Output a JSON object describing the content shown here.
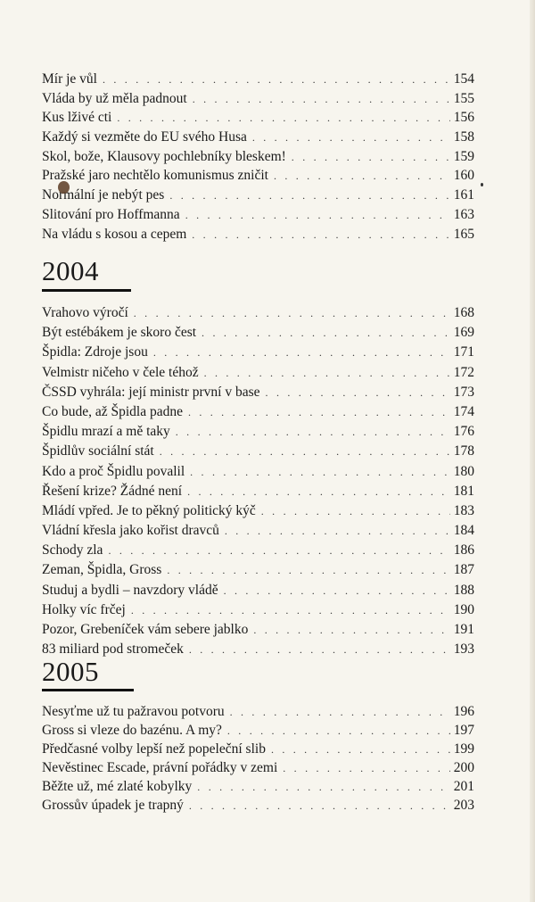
{
  "sections": [
    {
      "year": "",
      "entries": [
        {
          "title": "Mír je vůl",
          "page": "154"
        },
        {
          "title": "Vláda by už měla padnout",
          "page": "155"
        },
        {
          "title": "Kus lživé cti",
          "page": "156"
        },
        {
          "title": "Každý si vezměte do EU svého Husa",
          "page": "158"
        },
        {
          "title": "Skol, bože, Klausovy pochlebníky bleskem!",
          "page": "159"
        },
        {
          "title": "Pražské jaro nechtělo komunismus zničit",
          "page": "160"
        },
        {
          "title": "Normální je nebýt pes",
          "page": "161"
        },
        {
          "title": "Slitování pro Hoffmanna",
          "page": "163"
        },
        {
          "title": "Na vládu s kosou a cepem",
          "page": "165"
        }
      ]
    },
    {
      "year": "2004",
      "entries": [
        {
          "title": "Vrahovo výročí",
          "page": "168"
        },
        {
          "title": "Být estébákem je skoro čest",
          "page": "169"
        },
        {
          "title": "Špidla: Zdroje jsou",
          "page": "171"
        },
        {
          "title": "Velmistr ničeho v čele téhož",
          "page": "172"
        },
        {
          "title": "ČSSD vyhrála: její ministr první v base",
          "page": "173"
        },
        {
          "title": "Co bude, až Špidla padne",
          "page": "174"
        },
        {
          "title": "Špidlu mrazí a mě taky",
          "page": "176"
        },
        {
          "title": "Špidlův sociální stát",
          "page": "178"
        },
        {
          "title": "Kdo a proč Špidlu povalil",
          "page": "180"
        },
        {
          "title": "Řešení krize? Žádné není",
          "page": "181"
        },
        {
          "title": "Mládí vpřed. Je to pěkný politický kýč",
          "page": "183"
        },
        {
          "title": "Vládní křesla jako kořist dravců",
          "page": "184"
        },
        {
          "title": "Schody zla",
          "page": "186"
        },
        {
          "title": "Zeman, Špidla, Gross",
          "page": "187"
        },
        {
          "title": "Studuj a bydli – navzdory vládě",
          "page": "188"
        },
        {
          "title": "Holky víc frčej",
          "page": "190"
        },
        {
          "title": "Pozor, Grebeníček vám sebere jablko",
          "page": "191"
        },
        {
          "title": "83 miliard pod stromeček",
          "page": "193"
        }
      ]
    },
    {
      "year": "2005",
      "entries": [
        {
          "title": "Nesyťme už tu pažravou potvoru",
          "page": "196"
        },
        {
          "title": "Gross si vleze do bazénu. A my?",
          "page": "197"
        },
        {
          "title": "Předčasné volby lepší než popeleční slib",
          "page": "199"
        },
        {
          "title": "Nevěstinec Escade, právní pořádky v zemi",
          "page": "200"
        },
        {
          "title": "Běžte už, mé zlaté kobylky",
          "page": "201"
        },
        {
          "title": "Grossův úpadek je trapný",
          "page": "203"
        }
      ]
    }
  ]
}
